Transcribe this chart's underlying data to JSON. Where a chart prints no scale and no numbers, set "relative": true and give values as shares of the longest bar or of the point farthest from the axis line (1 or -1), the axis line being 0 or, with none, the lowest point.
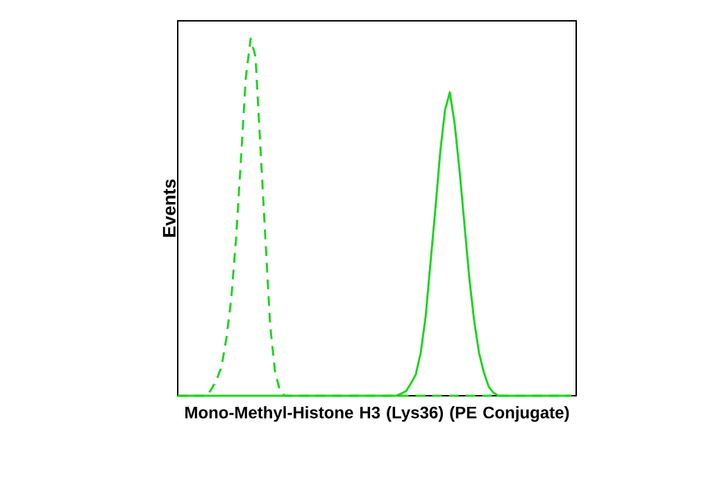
{
  "chart_data": {
    "type": "line",
    "relative": true,
    "xlabel": "Mono-Methyl-Histone H3 (Lys36) (PE Conjugate)",
    "ylabel": "Events",
    "marker": "none",
    "categories": [
      null,
      null,
      null,
      null,
      null,
      null,
      null,
      null,
      null,
      null,
      null,
      null,
      null,
      null,
      null,
      null,
      null,
      null,
      null,
      null,
      null,
      null,
      null,
      null,
      null,
      null,
      null,
      null,
      null,
      null,
      null,
      null,
      null,
      null,
      null,
      null,
      null,
      null,
      null,
      null,
      null,
      null,
      null,
      null,
      null,
      null,
      null,
      null,
      null,
      null,
      null,
      null,
      null,
      null,
      null,
      null,
      null,
      null,
      null,
      null,
      null,
      null,
      null,
      null,
      null,
      null,
      null,
      null,
      null,
      null,
      null,
      null,
      null,
      null,
      null,
      null,
      null,
      null,
      null,
      null,
      null,
      null
    ],
    "series": [
      {
        "color": "#1ed41e",
        "line_style": "dashed",
        "values": [
          0,
          0,
          0,
          0,
          0,
          0,
          0,
          0.02,
          0.045,
          0.08,
          0.16,
          0.27,
          0.44,
          0.66,
          0.89,
          1,
          0.95,
          0.7,
          0.45,
          0.2,
          0.07,
          0.015,
          0,
          0,
          0,
          0,
          0,
          0,
          0,
          0,
          0,
          0,
          0,
          0,
          0,
          0,
          0,
          0,
          0,
          0,
          0,
          0,
          0,
          0,
          0,
          0,
          0,
          0,
          0,
          0,
          0,
          0,
          0,
          0,
          0,
          0,
          0,
          0,
          0,
          0,
          0,
          0,
          0,
          0,
          0,
          0,
          0,
          0,
          0,
          0,
          0,
          0,
          0,
          0,
          0,
          0,
          0,
          0,
          0,
          0,
          0,
          0
        ]
      },
      {
        "color": "#1ed41e",
        "line_style": "solid",
        "values": [
          0,
          0,
          0,
          0,
          0,
          0,
          0,
          0,
          0,
          0,
          0,
          0,
          0,
          0,
          0,
          0,
          0,
          0,
          0,
          0,
          0,
          0,
          0,
          0,
          0,
          0,
          0,
          0,
          0,
          0,
          0,
          0,
          0,
          0,
          0,
          0,
          0,
          0,
          0,
          0,
          0,
          0,
          0,
          0,
          0,
          0,
          0.006,
          0.013,
          0.035,
          0.06,
          0.12,
          0.22,
          0.37,
          0.52,
          0.68,
          0.8,
          0.85,
          0.76,
          0.63,
          0.48,
          0.33,
          0.21,
          0.12,
          0.065,
          0.025,
          0.008,
          0,
          0,
          0,
          0,
          0,
          0,
          0,
          0,
          0,
          0,
          0,
          0,
          0,
          0,
          0,
          0
        ]
      }
    ]
  }
}
